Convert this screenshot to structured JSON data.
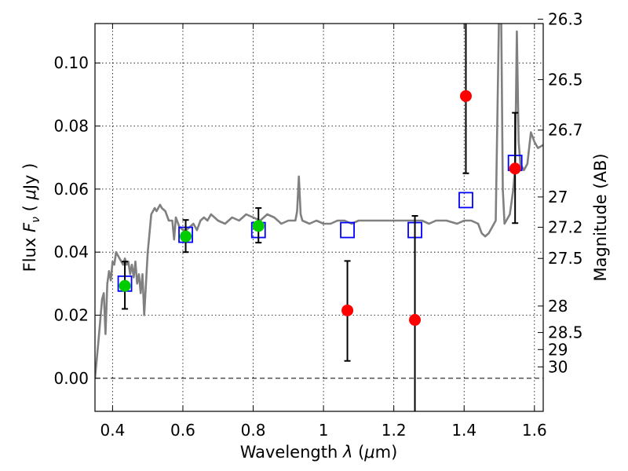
{
  "chart_data": {
    "type": "scatter",
    "title": "",
    "xlabel": "Wavelength  λ (μm)",
    "xlabel_parts": {
      "pre": "Wavelength ",
      "sym": "λ",
      "paren_open": " (",
      "mu": "μ",
      "unit": "m)"
    },
    "ylabel_parts": {
      "pre": "Flux ",
      "sym": "F",
      "sub": "ν",
      "open": " ( ",
      "mu": "μ",
      "unit": "Jy )"
    },
    "ylabel": "Flux  Fν  ( μJy )",
    "y2label": "Magnitude (AB)",
    "xlim": [
      0.35,
      1.625
    ],
    "ylim": [
      -0.0105,
      0.1125
    ],
    "grid": true,
    "x_ticks": [
      {
        "value": 0.4,
        "label": "0.4"
      },
      {
        "value": 0.6,
        "label": "0.6"
      },
      {
        "value": 0.8,
        "label": "0.8"
      },
      {
        "value": 1.0,
        "label": "1"
      },
      {
        "value": 1.2,
        "label": "1.2"
      },
      {
        "value": 1.4,
        "label": "1.4"
      },
      {
        "value": 1.6,
        "label": "1.6"
      }
    ],
    "y_ticks": [
      {
        "value": 0.0,
        "label": "0.00"
      },
      {
        "value": 0.02,
        "label": "0.02"
      },
      {
        "value": 0.04,
        "label": "0.04"
      },
      {
        "value": 0.06,
        "label": "0.06"
      },
      {
        "value": 0.08,
        "label": "0.08"
      },
      {
        "value": 0.1,
        "label": "0.10"
      }
    ],
    "mag_ticks": [
      {
        "flux": 0.1139,
        "label": "26.3"
      },
      {
        "flux": 0.0947,
        "label": "26.5"
      },
      {
        "flux": 0.0787,
        "label": "26.7"
      },
      {
        "flux": 0.0575,
        "label": "27"
      },
      {
        "flux": 0.0479,
        "label": "27.2"
      },
      {
        "flux": 0.038,
        "label": "27.5"
      },
      {
        "flux": 0.0229,
        "label": "28"
      },
      {
        "flux": 0.0145,
        "label": "28.5"
      },
      {
        "flux": 0.0091,
        "label": "29"
      },
      {
        "flux": 0.0036,
        "label": "30"
      }
    ],
    "series": [
      {
        "kind": "line",
        "color": "#808080",
        "x": [
          0.35,
          0.36,
          0.37,
          0.375,
          0.38,
          0.385,
          0.39,
          0.395,
          0.4,
          0.405,
          0.41,
          0.415,
          0.42,
          0.425,
          0.43,
          0.435,
          0.44,
          0.445,
          0.45,
          0.455,
          0.46,
          0.465,
          0.47,
          0.475,
          0.48,
          0.485,
          0.49,
          0.5,
          0.51,
          0.52,
          0.525,
          0.53,
          0.535,
          0.54,
          0.55,
          0.56,
          0.57,
          0.575,
          0.58,
          0.59,
          0.6,
          0.61,
          0.62,
          0.63,
          0.64,
          0.65,
          0.66,
          0.67,
          0.68,
          0.69,
          0.7,
          0.72,
          0.74,
          0.76,
          0.78,
          0.8,
          0.82,
          0.84,
          0.86,
          0.88,
          0.9,
          0.92,
          0.925,
          0.93,
          0.935,
          0.94,
          0.96,
          0.98,
          1.0,
          1.02,
          1.04,
          1.06,
          1.08,
          1.1,
          1.12,
          1.15,
          1.18,
          1.2,
          1.22,
          1.25,
          1.28,
          1.3,
          1.32,
          1.35,
          1.38,
          1.4,
          1.42,
          1.44,
          1.45,
          1.46,
          1.47,
          1.48,
          1.49,
          1.5,
          1.505,
          1.51,
          1.515,
          1.52,
          1.53,
          1.54,
          1.545,
          1.55,
          1.555,
          1.56,
          1.57,
          1.58,
          1.59,
          1.6,
          1.61,
          1.625
        ],
        "y": [
          0.0,
          0.012,
          0.025,
          0.027,
          0.014,
          0.03,
          0.034,
          0.031,
          0.037,
          0.036,
          0.04,
          0.039,
          0.038,
          0.037,
          0.036,
          0.038,
          0.036,
          0.037,
          0.033,
          0.036,
          0.032,
          0.037,
          0.03,
          0.033,
          0.027,
          0.033,
          0.02,
          0.04,
          0.052,
          0.054,
          0.053,
          0.054,
          0.055,
          0.054,
          0.053,
          0.05,
          0.05,
          0.044,
          0.051,
          0.048,
          0.047,
          0.047,
          0.048,
          0.049,
          0.047,
          0.05,
          0.051,
          0.05,
          0.052,
          0.051,
          0.05,
          0.049,
          0.051,
          0.05,
          0.052,
          0.051,
          0.05,
          0.052,
          0.051,
          0.049,
          0.05,
          0.05,
          0.053,
          0.064,
          0.052,
          0.05,
          0.049,
          0.05,
          0.049,
          0.049,
          0.05,
          0.05,
          0.049,
          0.05,
          0.05,
          0.05,
          0.05,
          0.05,
          0.05,
          0.05,
          0.05,
          0.049,
          0.05,
          0.05,
          0.049,
          0.05,
          0.05,
          0.049,
          0.046,
          0.045,
          0.046,
          0.048,
          0.05,
          0.12,
          0.12,
          0.06,
          0.049,
          0.05,
          0.052,
          0.06,
          0.067,
          0.11,
          0.075,
          0.068,
          0.066,
          0.068,
          0.078,
          0.075,
          0.073,
          0.074
        ]
      },
      {
        "kind": "open-square",
        "color": "#0000ff",
        "x": [
          0.435,
          0.608,
          0.815,
          1.068,
          1.26,
          1.405,
          1.545
        ],
        "y": [
          0.03,
          0.0455,
          0.047,
          0.047,
          0.047,
          0.0565,
          0.0683
        ]
      },
      {
        "kind": "circle",
        "color": "#00cc00",
        "x": [
          0.435,
          0.608,
          0.815
        ],
        "y": [
          0.0293,
          0.045,
          0.0483
        ],
        "err_lo": [
          0.0073,
          0.005,
          0.0053
        ],
        "err_hi": [
          0.0077,
          0.0052,
          0.0057
        ]
      },
      {
        "kind": "circle",
        "color": "#ff0000",
        "x": [
          1.068,
          1.26,
          1.405,
          1.545
        ],
        "y": [
          0.0215,
          0.0185,
          0.0895,
          0.0665
        ],
        "err_lo": [
          0.016,
          0.03,
          0.0245,
          0.0173
        ],
        "err_hi": [
          0.0157,
          0.033,
          0.03,
          0.0177
        ]
      }
    ]
  }
}
